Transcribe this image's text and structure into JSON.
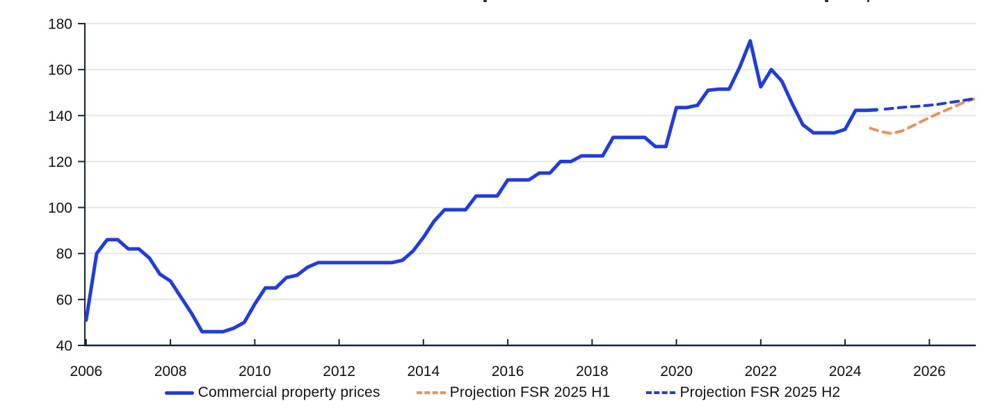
{
  "chart_data": {
    "type": "line",
    "title": "",
    "xlabel": "",
    "ylabel": "",
    "xlim": [
      2005.97,
      2027.1
    ],
    "ylim": [
      40,
      180
    ],
    "yticks": [
      40,
      60,
      80,
      100,
      120,
      140,
      160,
      180
    ],
    "xticks": [
      2006,
      2008,
      2010,
      2012,
      2014,
      2016,
      2018,
      2020,
      2022,
      2024,
      2026
    ],
    "grid": "horizontal-only",
    "legend_position": "bottom-center",
    "colors": {
      "axis": "#12233f",
      "gridline": "#e6e6e8",
      "tick_text": "#111111"
    },
    "series": [
      {
        "name": "Commercial property prices",
        "color": "#1c3bea",
        "style": "solid",
        "x": [
          2006.0,
          2006.25,
          2006.5,
          2006.75,
          2007.0,
          2007.25,
          2007.5,
          2007.75,
          2008.0,
          2008.25,
          2008.5,
          2008.75,
          2009.0,
          2009.25,
          2009.5,
          2009.75,
          2010.0,
          2010.25,
          2010.5,
          2010.75,
          2011.0,
          2011.25,
          2011.5,
          2011.75,
          2012.0,
          2012.25,
          2012.5,
          2012.75,
          2013.0,
          2013.25,
          2013.5,
          2013.75,
          2014.0,
          2014.25,
          2014.5,
          2014.75,
          2015.0,
          2015.25,
          2015.5,
          2015.75,
          2016.0,
          2016.25,
          2016.5,
          2016.75,
          2017.0,
          2017.25,
          2017.5,
          2017.75,
          2018.0,
          2018.25,
          2018.5,
          2018.75,
          2019.0,
          2019.25,
          2019.5,
          2019.75,
          2020.0,
          2020.25,
          2020.5,
          2020.75,
          2021.0,
          2021.25,
          2021.5,
          2021.75,
          2022.0,
          2022.25,
          2022.5,
          2022.75,
          2023.0,
          2023.25,
          2023.5,
          2023.75,
          2024.0,
          2024.25,
          2024.5,
          2024.75
        ],
        "values": [
          51,
          80,
          86,
          86,
          82,
          82,
          78,
          71,
          68,
          61,
          54,
          46,
          46,
          46,
          47.5,
          50,
          58,
          65,
          65,
          69.5,
          70.5,
          74,
          76,
          76,
          76,
          76,
          76,
          76,
          76,
          76,
          77,
          81,
          87,
          94,
          99,
          99,
          99,
          105,
          105,
          105,
          112,
          112,
          112,
          115,
          115,
          120,
          120,
          122.5,
          122.5,
          122.5,
          130.5,
          130.5,
          130.5,
          130.5,
          126.5,
          126.5,
          143.5,
          143.5,
          144.5,
          151,
          151.5,
          151.5,
          161,
          172.5,
          152.5,
          160,
          155,
          145,
          136,
          132.5,
          132.5,
          132.5,
          134,
          142.3,
          142.3,
          142.5
        ]
      },
      {
        "name": "Projection FSR 2025 H1",
        "color": "#ee9150",
        "style": "dashed",
        "x": [
          2024.6,
          2024.85,
          2025.1,
          2025.35,
          2025.6,
          2025.85,
          2026.1,
          2026.35,
          2026.6,
          2026.85,
          2027.05
        ],
        "values": [
          134.5,
          133.0,
          132.2,
          133.3,
          135.5,
          137.8,
          140.0,
          142.0,
          144.0,
          146.0,
          147.2
        ]
      },
      {
        "name": "Projection FSR 2025 H2",
        "color": "#1c3bea",
        "style": "dashed",
        "x": [
          2024.95,
          2025.2,
          2025.45,
          2025.7,
          2025.95,
          2026.2,
          2026.45,
          2026.7,
          2026.95,
          2027.05
        ],
        "values": [
          142.8,
          143.3,
          143.7,
          144.0,
          144.4,
          144.9,
          145.6,
          146.3,
          147.0,
          147.3
        ]
      }
    ]
  }
}
